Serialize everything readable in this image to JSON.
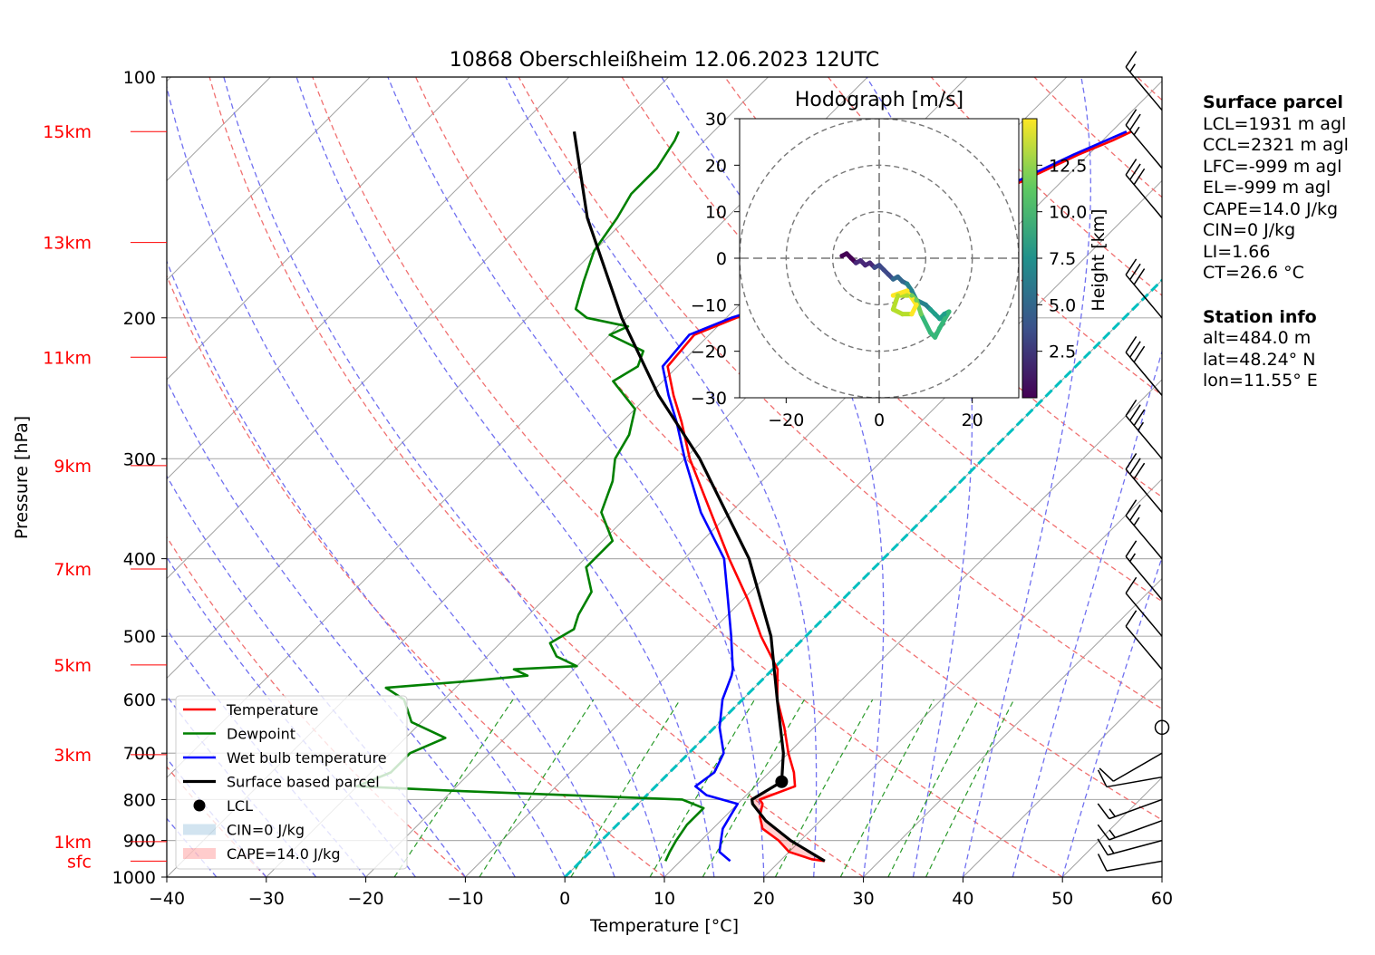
{
  "chart_data": [
    {
      "type": "skew-t",
      "title": "10868 Oberschleißheim 12.06.2023 12UTC",
      "xlabel": "Temperature [°C]",
      "ylabel": "Pressure [hPa]",
      "xlim": [
        -40,
        60
      ],
      "ylim": [
        1000,
        100
      ],
      "y_scale": "log",
      "grid": true,
      "x_ticks": [
        "−40",
        "−30",
        "−20",
        "−10",
        "0",
        "10",
        "20",
        "30",
        "40",
        "50",
        "60"
      ],
      "y_ticks": [
        "1000",
        "900",
        "800",
        "700",
        "600",
        "500",
        "400",
        "300",
        "200",
        "100"
      ],
      "height_labels": [
        {
          "label": "sfc",
          "p": 955
        },
        {
          "label": "1km",
          "p": 903
        },
        {
          "label": "3km",
          "p": 703
        },
        {
          "label": "5km",
          "p": 543
        },
        {
          "label": "7km",
          "p": 412
        },
        {
          "label": "9km",
          "p": 306
        },
        {
          "label": "11km",
          "p": 224
        },
        {
          "label": "13km",
          "p": 161
        },
        {
          "label": "15km",
          "p": 117
        }
      ],
      "series": [
        {
          "name": "Temperature",
          "color": "#ff0000",
          "points": [
            [
              955,
              24.5
            ],
            [
              950,
              23.0
            ],
            [
              930,
              20.0
            ],
            [
              900,
              17.8
            ],
            [
              870,
              15.0
            ],
            [
              840,
              13.5
            ],
            [
              810,
              12.5
            ],
            [
              800,
              11.8
            ],
            [
              790,
              12.5
            ],
            [
              770,
              14.0
            ],
            [
              740,
              12.5
            ],
            [
              700,
              10.0
            ],
            [
              650,
              7.0
            ],
            [
              600,
              3.5
            ],
            [
              550,
              0.5
            ],
            [
              500,
              -4.5
            ],
            [
              450,
              -9.5
            ],
            [
              400,
              -15.5
            ],
            [
              350,
              -22.0
            ],
            [
              300,
              -29.5
            ],
            [
              270,
              -34.0
            ],
            [
              250,
              -37.5
            ],
            [
              230,
              -41.0
            ],
            [
              210,
              -41.5
            ],
            [
              200,
              -39.0
            ],
            [
              190,
              -35.0
            ],
            [
              170,
              -31.0
            ],
            [
              150,
              -28.0
            ],
            [
              135,
              -24.0
            ],
            [
              125,
              -21.0
            ],
            [
              120,
              -19.0
            ],
            [
              117,
              -18.0
            ]
          ]
        },
        {
          "name": "Dewpoint",
          "color": "#008000",
          "points": [
            [
              955,
              8.5
            ],
            [
              930,
              8.0
            ],
            [
              900,
              7.5
            ],
            [
              860,
              7.0
            ],
            [
              820,
              7.0
            ],
            [
              800,
              4.0
            ],
            [
              780,
              -20.0
            ],
            [
              770,
              -30.0
            ],
            [
              740,
              -28.0
            ],
            [
              700,
              -28.0
            ],
            [
              670,
              -26.0
            ],
            [
              640,
              -31.0
            ],
            [
              600,
              -34.0
            ],
            [
              580,
              -37.0
            ],
            [
              570,
              -30.0
            ],
            [
              560,
              -24.0
            ],
            [
              550,
              -26.0
            ],
            [
              545,
              -20.0
            ],
            [
              530,
              -23.0
            ],
            [
              510,
              -25.0
            ],
            [
              490,
              -24.0
            ],
            [
              470,
              -25.0
            ],
            [
              440,
              -26.0
            ],
            [
              410,
              -29.0
            ],
            [
              380,
              -29.0
            ],
            [
              350,
              -33.0
            ],
            [
              320,
              -35.0
            ],
            [
              300,
              -37.0
            ],
            [
              280,
              -38.0
            ],
            [
              260,
              -40.0
            ],
            [
              240,
              -45.0
            ],
            [
              230,
              -44.0
            ],
            [
              220,
              -45.0
            ],
            [
              210,
              -50.0
            ],
            [
              205,
              -49.0
            ],
            [
              200,
              -54.0
            ],
            [
              195,
              -56.0
            ],
            [
              180,
              -58.0
            ],
            [
              165,
              -60.0
            ],
            [
              150,
              -61.0
            ],
            [
              140,
              -62.0
            ],
            [
              130,
              -62.0
            ],
            [
              120,
              -63.0
            ],
            [
              117,
              -63.5
            ]
          ]
        },
        {
          "name": "Wet bulb temperature",
          "color": "#0000ff",
          "points": [
            [
              955,
              15.0
            ],
            [
              930,
              13.0
            ],
            [
              900,
              12.0
            ],
            [
              870,
              11.0
            ],
            [
              840,
              10.5
            ],
            [
              810,
              10.0
            ],
            [
              790,
              6.0
            ],
            [
              770,
              4.0
            ],
            [
              740,
              4.5
            ],
            [
              700,
              3.5
            ],
            [
              650,
              0.5
            ],
            [
              600,
              -2.0
            ],
            [
              560,
              -3.5
            ],
            [
              550,
              -4.0
            ],
            [
              500,
              -7.5
            ],
            [
              450,
              -11.5
            ],
            [
              400,
              -16.0
            ],
            [
              350,
              -23.0
            ],
            [
              300,
              -30.0
            ],
            [
              270,
              -34.5
            ],
            [
              250,
              -38.0
            ],
            [
              230,
              -41.5
            ],
            [
              210,
              -42.0
            ],
            [
              200,
              -39.5
            ],
            [
              190,
              -35.5
            ],
            [
              170,
              -31.5
            ],
            [
              150,
              -28.5
            ],
            [
              135,
              -24.5
            ],
            [
              125,
              -21.5
            ],
            [
              117,
              -18.5
            ]
          ]
        },
        {
          "name": "Surface based parcel",
          "color": "#000000",
          "points": [
            [
              955,
              24.5
            ],
            [
              900,
              19.0
            ],
            [
              850,
              14.5
            ],
            [
              810,
              11.5
            ],
            [
              800,
              11.0
            ],
            [
              760,
              12.2
            ],
            [
              700,
              9.5
            ],
            [
              600,
              3.5
            ],
            [
              500,
              -3.5
            ],
            [
              400,
              -13.5
            ],
            [
              300,
              -28.5
            ],
            [
              250,
              -39.0
            ],
            [
              200,
              -50.5
            ],
            [
              150,
              -64.0
            ],
            [
              117,
              -74.0
            ]
          ]
        }
      ],
      "lcl": {
        "name": "LCL",
        "p": 760,
        "t": 12.2
      },
      "shading": [
        {
          "name": "CIN=0 J/kg",
          "color": "#1f77b4"
        },
        {
          "name": "CAPE=14.0 J/kg",
          "color": "#ff0000"
        }
      ],
      "legend_position": "lower-left",
      "wind_barbs": [
        {
          "p": 955,
          "dir": 260,
          "speed_kt": 10
        },
        {
          "p": 900,
          "dir": 255,
          "speed_kt": 15
        },
        {
          "p": 850,
          "dir": 250,
          "speed_kt": 15
        },
        {
          "p": 800,
          "dir": 250,
          "speed_kt": 15
        },
        {
          "p": 750,
          "dir": 260,
          "speed_kt": 10
        },
        {
          "p": 700,
          "dir": 240,
          "speed_kt": 10
        },
        {
          "p": 650,
          "dir": 0,
          "speed_kt": 0
        },
        {
          "p": 550,
          "dir": 320,
          "speed_kt": 10
        },
        {
          "p": 500,
          "dir": 320,
          "speed_kt": 10
        },
        {
          "p": 450,
          "dir": 320,
          "speed_kt": 15
        },
        {
          "p": 400,
          "dir": 320,
          "speed_kt": 25
        },
        {
          "p": 350,
          "dir": 320,
          "speed_kt": 30
        },
        {
          "p": 300,
          "dir": 320,
          "speed_kt": 35
        },
        {
          "p": 250,
          "dir": 320,
          "speed_kt": 30
        },
        {
          "p": 200,
          "dir": 320,
          "speed_kt": 30
        },
        {
          "p": 150,
          "dir": 320,
          "speed_kt": 30
        },
        {
          "p": 130,
          "dir": 320,
          "speed_kt": 25
        },
        {
          "p": 110,
          "dir": 320,
          "speed_kt": 15
        }
      ],
      "isotherm_0C": {
        "name": "0 °C isotherm",
        "color": "#00bfbf"
      }
    },
    {
      "type": "scatter",
      "title": "Hodograph [m/s]",
      "xlim": [
        -30,
        30
      ],
      "ylim": [
        -30,
        30
      ],
      "x_ticks": [
        "−20",
        "0",
        "20"
      ],
      "y_ticks": [
        "30",
        "20",
        "10",
        "0",
        "−10",
        "−20",
        "−30"
      ],
      "rings": [
        10,
        20,
        30
      ],
      "colorbar": {
        "label": "Height [km]",
        "ticks": [
          "2.5",
          "5.0",
          "7.5",
          "10.0",
          "12.5"
        ],
        "range": [
          0,
          15
        ],
        "colormap": "viridis"
      },
      "points": [
        [
          -8,
          0.5,
          0.3
        ],
        [
          -7,
          1,
          0.8
        ],
        [
          -6,
          0,
          1.2
        ],
        [
          -5,
          -1,
          1.6
        ],
        [
          -4,
          -0.5,
          2.0
        ],
        [
          -3,
          -1.5,
          2.4
        ],
        [
          -2,
          -1,
          2.8
        ],
        [
          -1,
          -2,
          3.2
        ],
        [
          0,
          -1.5,
          3.6
        ],
        [
          1,
          -2.5,
          4.0
        ],
        [
          2,
          -3.5,
          4.4
        ],
        [
          3,
          -4.5,
          4.8
        ],
        [
          4,
          -4,
          5.2
        ],
        [
          5,
          -5,
          5.6
        ],
        [
          6,
          -5.5,
          6.0
        ],
        [
          7,
          -7,
          6.4
        ],
        [
          8,
          -9,
          6.8
        ],
        [
          10,
          -10,
          7.2
        ],
        [
          11,
          -11,
          7.6
        ],
        [
          12,
          -12,
          8.0
        ],
        [
          13,
          -13,
          8.4
        ],
        [
          14,
          -12,
          8.8
        ],
        [
          15,
          -11.5,
          9.2
        ],
        [
          13,
          -15,
          9.6
        ],
        [
          12,
          -17,
          10.0
        ],
        [
          11,
          -16,
          10.4
        ],
        [
          9,
          -12,
          10.8
        ],
        [
          8,
          -9,
          11.2
        ],
        [
          7,
          -8,
          11.6
        ],
        [
          6,
          -8,
          12.0
        ],
        [
          4,
          -8,
          12.4
        ],
        [
          3,
          -11,
          12.8
        ],
        [
          5,
          -12,
          13.2
        ],
        [
          7,
          -12,
          13.6
        ],
        [
          8,
          -10,
          14.0
        ],
        [
          6,
          -7,
          14.4
        ],
        [
          3,
          -8,
          14.8
        ]
      ]
    }
  ],
  "surface_parcel": {
    "header": "Surface parcel",
    "lines": [
      "LCL=1931 m agl",
      "CCL=2321 m agl",
      "LFC=-999 m agl",
      "EL=-999 m agl",
      "CAPE=14.0 J/kg",
      "CIN=0 J/kg",
      "LI=1.66",
      "CT=26.6 °C"
    ]
  },
  "station_info": {
    "header": "Station info",
    "lines": [
      "alt=484.0 m",
      "lat=48.24° N",
      "lon=11.55° E"
    ]
  }
}
